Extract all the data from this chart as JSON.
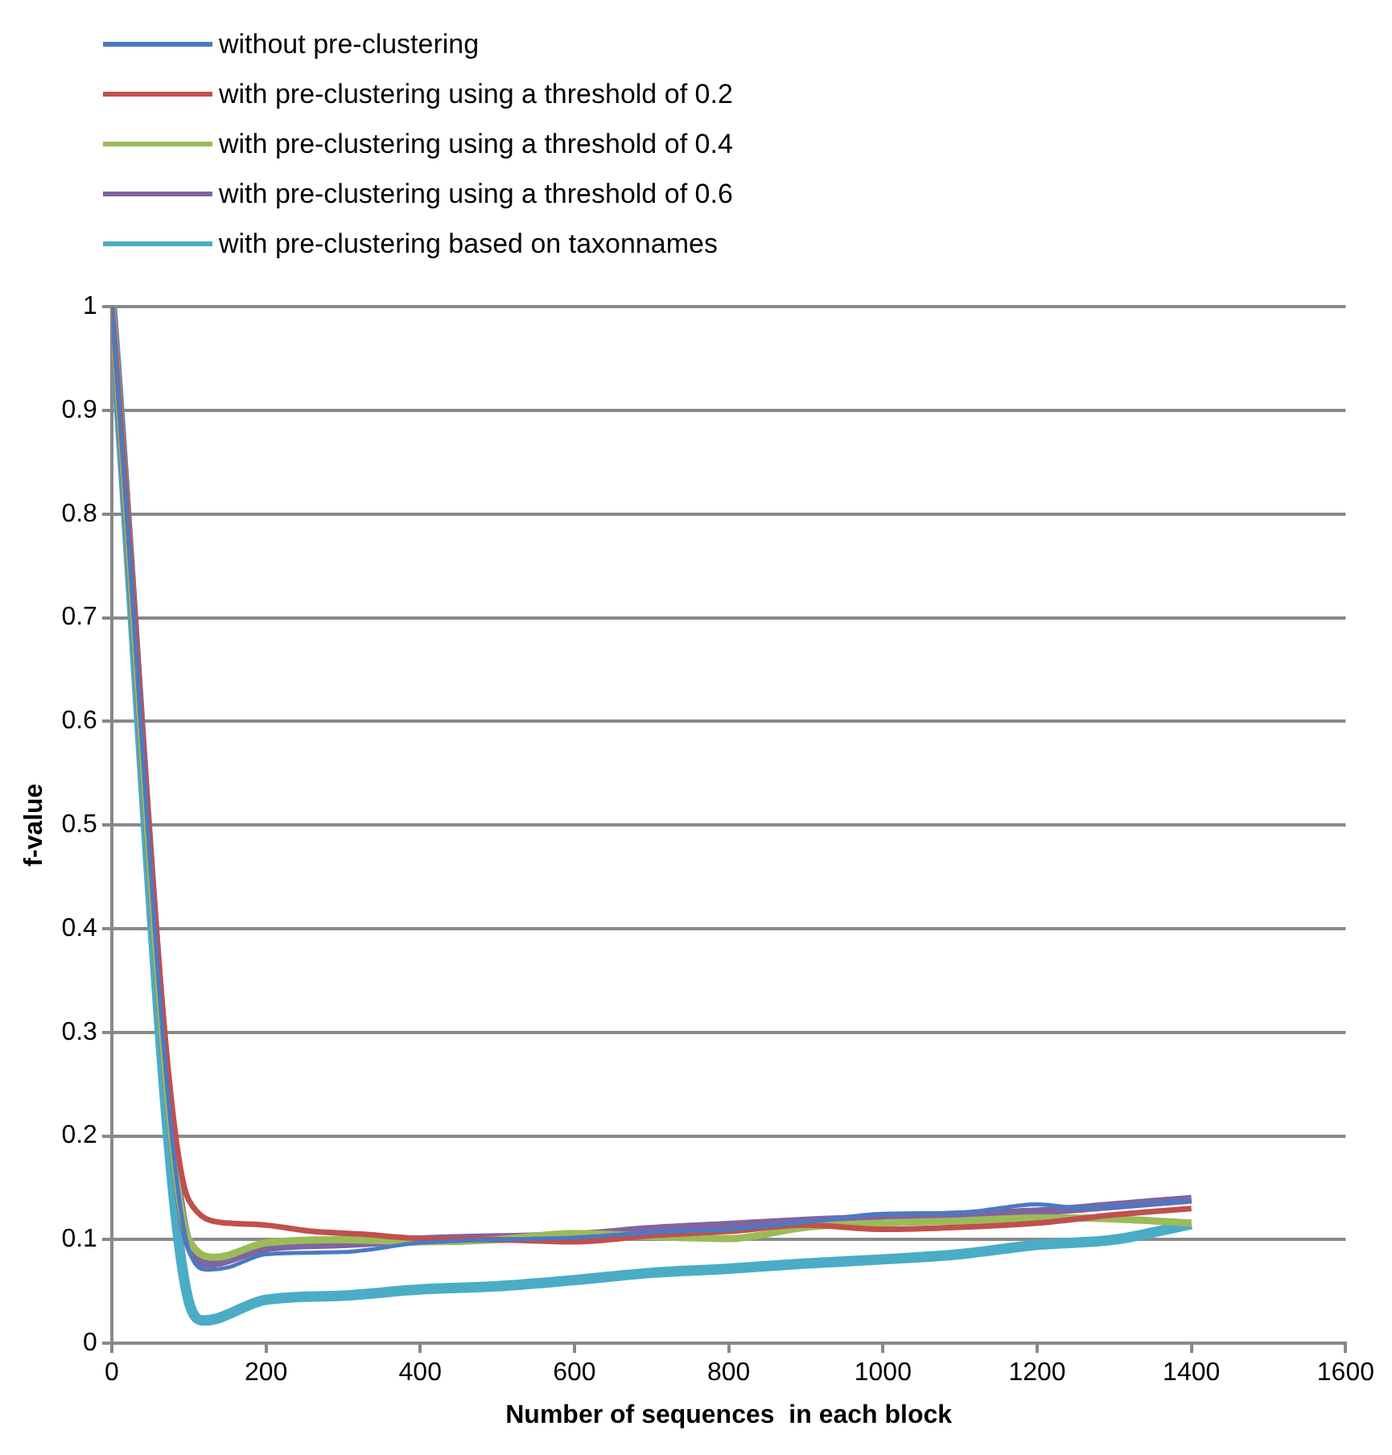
{
  "chart_data": {
    "type": "line",
    "xlabel": "Number of sequences  in each block",
    "ylabel": "f-value",
    "xlim": [
      0,
      1600
    ],
    "xticks": [
      0,
      200,
      400,
      600,
      800,
      1000,
      1200,
      1400,
      1600
    ],
    "ylim": [
      0,
      1
    ],
    "yticks": [
      0,
      0.1,
      0.2,
      0.3,
      0.4,
      0.5,
      0.6,
      0.7,
      0.8,
      0.9,
      1
    ],
    "grid": "y",
    "legend": "top left",
    "marker": "none",
    "line_style": "solid",
    "series": [
      {
        "name": "without pre-clustering",
        "color": "#4a7ac4",
        "x": [
          0,
          100,
          125,
          150,
          200,
          300,
          400,
          500,
          600,
          700,
          800,
          900,
          1000,
          1100,
          1200,
          1250,
          1300,
          1400
        ],
        "values": [
          1,
          0.09,
          0.071,
          0.073,
          0.086,
          0.088,
          0.097,
          0.1,
          0.102,
          0.107,
          0.11,
          0.117,
          0.125,
          0.126,
          0.134,
          0.131,
          0.132,
          0.138
        ]
      },
      {
        "name": "with pre-clustering using a threshold of 0.2",
        "color": "#c0504d",
        "x": [
          0,
          100,
          150,
          200,
          260,
          330,
          400,
          500,
          600,
          700,
          800,
          900,
          1000,
          1100,
          1200,
          1300,
          1400
        ],
        "values": [
          1,
          0.138,
          0.116,
          0.114,
          0.108,
          0.105,
          0.101,
          0.1,
          0.098,
          0.104,
          0.108,
          0.114,
          0.11,
          0.112,
          0.116,
          0.124,
          0.13
        ]
      },
      {
        "name": "with pre-clustering using a threshold of 0.4",
        "color": "#9bbb59",
        "x": [
          0,
          100,
          135,
          200,
          300,
          400,
          500,
          600,
          700,
          800,
          900,
          1000,
          1100,
          1200,
          1300,
          1400
        ],
        "values": [
          1,
          0.1,
          0.083,
          0.097,
          0.1,
          0.098,
          0.1,
          0.106,
          0.103,
          0.101,
          0.112,
          0.116,
          0.118,
          0.121,
          0.12,
          0.116
        ]
      },
      {
        "name": "with pre-clustering using a threshold of 0.6",
        "color": "#8064a2",
        "x": [
          0,
          100,
          125,
          200,
          300,
          400,
          500,
          600,
          700,
          800,
          900,
          1000,
          1100,
          1200,
          1300,
          1400
        ],
        "values": [
          1,
          0.095,
          0.077,
          0.092,
          0.096,
          0.1,
          0.102,
          0.104,
          0.11,
          0.114,
          0.118,
          0.121,
          0.124,
          0.127,
          0.133,
          0.139
        ]
      },
      {
        "name": "with pre-clustering based on taxonnames",
        "color": "#4bacc6",
        "x": [
          0,
          100,
          120,
          200,
          300,
          400,
          500,
          600,
          700,
          800,
          900,
          1000,
          1100,
          1200,
          1300,
          1400
        ],
        "values": [
          1,
          0.04,
          0.022,
          0.042,
          0.046,
          0.052,
          0.055,
          0.061,
          0.068,
          0.072,
          0.077,
          0.081,
          0.086,
          0.095,
          0.1,
          0.115
        ]
      }
    ]
  }
}
